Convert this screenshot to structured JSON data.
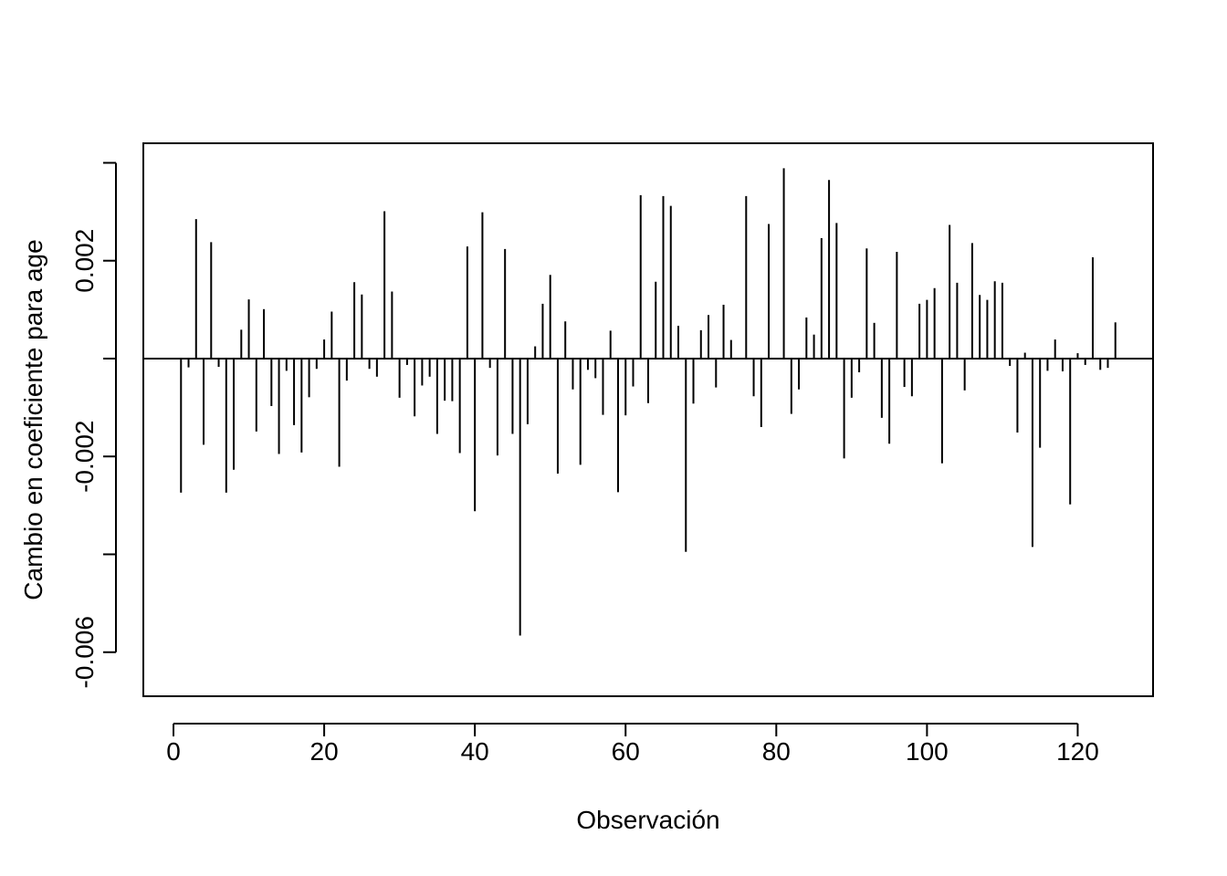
{
  "chart_data": {
    "type": "bar",
    "style": "vertical-lines (R type='h')",
    "title": "",
    "xlabel": "Observación",
    "ylabel": "Cambio en coeficiente para age",
    "xlim": [
      -4,
      130
    ],
    "ylim": [
      -0.0069,
      0.0044
    ],
    "x_ticks": [
      0,
      20,
      40,
      60,
      80,
      100,
      120
    ],
    "x_tick_labels": [
      "0",
      "20",
      "40",
      "60",
      "80",
      "100",
      "120"
    ],
    "y_ticks": [
      0.004,
      0.002,
      0.0,
      -0.002,
      -0.004,
      -0.006
    ],
    "y_tick_labels": [
      {
        "value": 0.002,
        "label": "0.002"
      },
      {
        "value": -0.002,
        "label": "-0.002"
      },
      {
        "value": -0.006,
        "label": "-0.006"
      }
    ],
    "reference_line": 0,
    "color": "#000000",
    "x": [
      1,
      2,
      3,
      4,
      5,
      6,
      7,
      8,
      9,
      10,
      11,
      12,
      13,
      14,
      15,
      16,
      17,
      18,
      19,
      20,
      21,
      22,
      23,
      24,
      25,
      26,
      27,
      28,
      29,
      30,
      31,
      32,
      33,
      34,
      35,
      36,
      37,
      38,
      39,
      40,
      41,
      42,
      43,
      44,
      45,
      46,
      47,
      48,
      49,
      50,
      51,
      52,
      53,
      54,
      55,
      56,
      57,
      58,
      59,
      60,
      61,
      62,
      63,
      64,
      65,
      66,
      67,
      68,
      69,
      70,
      71,
      72,
      73,
      74,
      75,
      76,
      77,
      78,
      79,
      80,
      81,
      82,
      83,
      84,
      85,
      86,
      87,
      88,
      89,
      90,
      91,
      92,
      93,
      94,
      95,
      96,
      97,
      98,
      99,
      100,
      101,
      102,
      103,
      104,
      105,
      106,
      107,
      108,
      109,
      110,
      111,
      112,
      113,
      114,
      115,
      116,
      117,
      118,
      119,
      120,
      121,
      122,
      123,
      124,
      125
    ],
    "values": [
      -0.00274,
      -0.00018,
      0.00285,
      -0.00176,
      0.00238,
      -0.00017,
      -0.00274,
      -0.00227,
      0.00059,
      0.00121,
      -0.00149,
      0.00101,
      -0.00097,
      -0.00195,
      -0.00025,
      -0.00136,
      -0.00192,
      -0.00079,
      -0.00021,
      0.00039,
      0.00096,
      -0.00221,
      -0.00045,
      0.00156,
      0.00131,
      -0.00021,
      -0.00037,
      0.00301,
      0.00137,
      -0.0008,
      -0.00013,
      -0.00118,
      -0.00055,
      -0.00037,
      -0.00154,
      -0.00086,
      -0.00087,
      -0.00193,
      0.00229,
      -0.00312,
      0.00299,
      -0.00019,
      -0.00198,
      0.00224,
      -0.00154,
      -0.00566,
      -0.00134,
      0.00025,
      0.00112,
      0.00171,
      -0.00235,
      0.00076,
      -0.00063,
      -0.00217,
      -0.00023,
      -0.0004,
      -0.00115,
      0.00057,
      -0.00273,
      -0.00116,
      -0.00057,
      0.00334,
      -0.00091,
      0.00157,
      0.00332,
      0.00312,
      0.00067,
      -0.00395,
      -0.00092,
      0.00058,
      0.00089,
      -0.00059,
      0.0011,
      0.00038,
      0.0,
      0.00332,
      -0.00077,
      -0.0014,
      0.00275,
      0.0,
      0.00389,
      -0.00113,
      -0.00063,
      0.00084,
      0.00049,
      0.00246,
      0.00365,
      0.00277,
      -0.00204,
      -0.0008,
      -0.00028,
      0.00225,
      0.00073,
      -0.00121,
      -0.00174,
      0.00218,
      -0.00058,
      -0.00077,
      0.00112,
      0.0012,
      0.00144,
      -0.00214,
      0.00273,
      0.00155,
      -0.00065,
      0.00236,
      0.0013,
      0.0012,
      0.00158,
      0.00155,
      -0.00015,
      -0.00151,
      0.00012,
      -0.00385,
      -0.00182,
      -0.00025,
      0.00039,
      -0.00026,
      -0.00298,
      0.00011,
      -0.00013,
      0.00207,
      -0.00023,
      -0.00019,
      0.00074
    ]
  }
}
